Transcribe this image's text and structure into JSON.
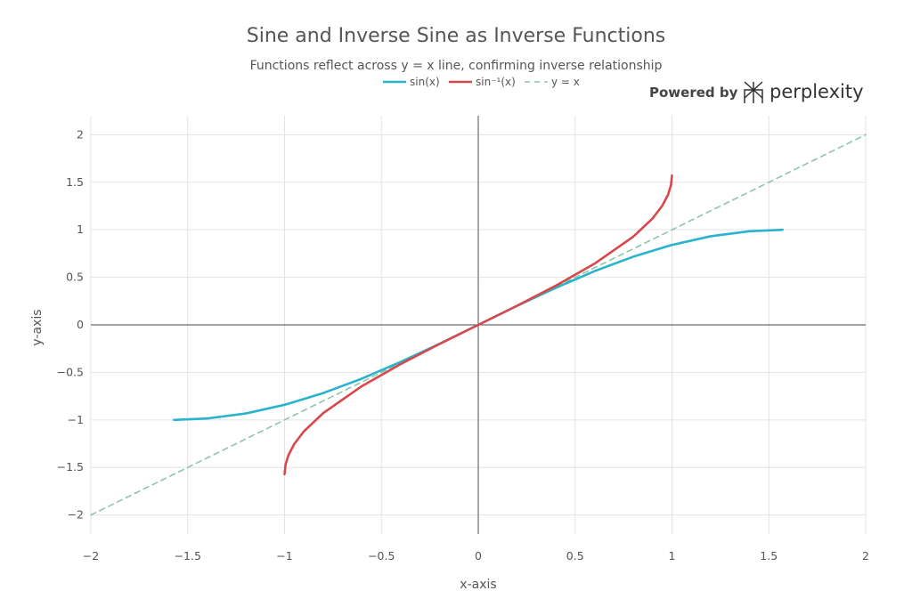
{
  "chart_data": {
    "type": "line",
    "title": "Sine and Inverse Sine as Inverse Functions",
    "subtitle": "Functions reflect across y = x line, confirming inverse relationship",
    "xlabel": "x-axis",
    "ylabel": "y-axis",
    "xlim": [
      -2,
      2
    ],
    "ylim": [
      -2.2,
      2.2
    ],
    "xticks": [
      -2,
      -1.5,
      -1,
      -0.5,
      0,
      0.5,
      1,
      1.5,
      2
    ],
    "yticks": [
      -2,
      -1.5,
      -1,
      -0.5,
      0,
      0.5,
      1,
      1.5,
      2
    ],
    "xtick_labels": [
      "−2",
      "−1.5",
      "−1",
      "−0.5",
      "0",
      "0.5",
      "1",
      "1.5",
      "2"
    ],
    "ytick_labels": [
      "−2",
      "−1.5",
      "−1",
      "−0.5",
      "0",
      "0.5",
      "1",
      "1.5",
      "2"
    ],
    "grid": true,
    "legend_position": "top-center",
    "series": [
      {
        "name": "sin(x)",
        "color": "#2ab4cc",
        "dash": "solid",
        "x": [
          -1.5708,
          -1.4,
          -1.2,
          -1.0,
          -0.8,
          -0.6,
          -0.4,
          -0.2,
          0,
          0.2,
          0.4,
          0.6,
          0.8,
          1.0,
          1.2,
          1.4,
          1.5708
        ],
        "y": [
          -1.0,
          -0.985,
          -0.932,
          -0.841,
          -0.717,
          -0.565,
          -0.389,
          -0.199,
          0,
          0.199,
          0.389,
          0.565,
          0.717,
          0.841,
          0.932,
          0.985,
          1.0
        ]
      },
      {
        "name": "sin⁻¹(x)",
        "color": "#d9474b",
        "dash": "solid",
        "x": [
          -1.0,
          -0.995,
          -0.98,
          -0.95,
          -0.9,
          -0.8,
          -0.6,
          -0.4,
          -0.2,
          0,
          0.2,
          0.4,
          0.6,
          0.8,
          0.9,
          0.95,
          0.98,
          0.995,
          1.0
        ],
        "y": [
          -1.5708,
          -1.4706,
          -1.3705,
          -1.2532,
          -1.1198,
          -0.9273,
          -0.6435,
          -0.4115,
          -0.2014,
          0,
          0.2014,
          0.4115,
          0.6435,
          0.9273,
          1.1198,
          1.2532,
          1.3705,
          1.4706,
          1.5708
        ]
      },
      {
        "name": "y = x",
        "color": "#8dc4b0",
        "dash": "dashed",
        "x": [
          -2,
          2
        ],
        "y": [
          -2,
          2
        ]
      }
    ]
  },
  "brand": {
    "powered_label": "Powered by",
    "name": "perplexity"
  }
}
